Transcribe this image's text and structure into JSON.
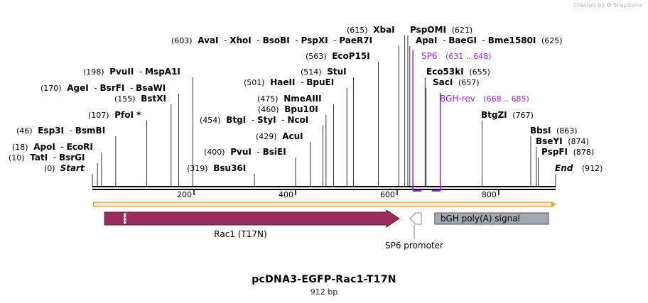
{
  "credit": {
    "prefix": "Created by",
    "brand": "SnapGene"
  },
  "plasmid": {
    "name": "pcDNA3-EGFP-Rac1-T17N",
    "length_label": "912 bp",
    "length": 912
  },
  "ends": {
    "start": {
      "pos_label": "(0)",
      "name": "Start"
    },
    "end": {
      "name": "End",
      "pos_label": "(912)"
    }
  },
  "ruler_ticks": [
    "200",
    "400",
    "600",
    "800"
  ],
  "sites": [
    {
      "id": "tati",
      "pos": 10,
      "pos_label": "(10)",
      "parts": [
        "TatI",
        "BsrGI"
      ]
    },
    {
      "id": "apoi",
      "pos": 18,
      "pos_label": "(18)",
      "parts": [
        "ApoI",
        "EcoRI"
      ]
    },
    {
      "id": "esp3i",
      "pos": 46,
      "pos_label": "(46)",
      "parts": [
        "Esp3I",
        "BsmBI"
      ]
    },
    {
      "id": "pfoi",
      "pos": 107,
      "pos_label": "(107)",
      "parts": [
        "PfoI *"
      ]
    },
    {
      "id": "bstxi",
      "pos": 155,
      "pos_label": "(155)",
      "parts": [
        "BstXI"
      ]
    },
    {
      "id": "agei",
      "pos": 170,
      "pos_label": "(170)",
      "parts": [
        "AgeI",
        "BsrFI",
        "BsaWI"
      ]
    },
    {
      "id": "pvuii",
      "pos": 198,
      "pos_label": "(198)",
      "parts": [
        "PvuII",
        "MspA1I"
      ]
    },
    {
      "id": "bsu36i",
      "pos": 319,
      "pos_label": "(319)",
      "parts": [
        "Bsu36I"
      ]
    },
    {
      "id": "pvui",
      "pos": 400,
      "pos_label": "(400)",
      "parts": [
        "PvuI",
        "BsiEI"
      ]
    },
    {
      "id": "acui",
      "pos": 429,
      "pos_label": "(429)",
      "parts": [
        "AcuI"
      ]
    },
    {
      "id": "btgi",
      "pos": 454,
      "pos_label": "(454)",
      "parts": [
        "BtgI",
        "StyI",
        "NcoI"
      ]
    },
    {
      "id": "bpu10i",
      "pos": 460,
      "pos_label": "(460)",
      "parts": [
        "Bpu10I"
      ]
    },
    {
      "id": "nmeaiii",
      "pos": 475,
      "pos_label": "(475)",
      "parts": [
        "NmeAIII"
      ]
    },
    {
      "id": "haeii",
      "pos": 501,
      "pos_label": "(501)",
      "parts": [
        "HaeII",
        "BpuEI"
      ]
    },
    {
      "id": "stui",
      "pos": 514,
      "pos_label": "(514)",
      "parts": [
        "StuI"
      ]
    },
    {
      "id": "ecop15i",
      "pos": 563,
      "pos_label": "(563)",
      "parts": [
        "EcoP15I"
      ]
    },
    {
      "id": "avai",
      "pos": 603,
      "pos_label": "(603)",
      "parts": [
        "AvaI",
        "XhoI",
        "BsoBI",
        "PspXI",
        "PaeR7I"
      ]
    },
    {
      "id": "xbai",
      "pos": 615,
      "pos_label": "(615)",
      "parts": [
        "XbaI"
      ]
    },
    {
      "id": "pspomi",
      "pos": 621,
      "pos_label": "(621)",
      "parts": [
        "PspOMI"
      ],
      "label_after": true
    },
    {
      "id": "apai",
      "pos": 625,
      "pos_label": "(625)",
      "parts": [
        "ApaI",
        "BaeGI",
        "Bme1580I"
      ],
      "label_after": true
    },
    {
      "id": "eco53ki",
      "pos": 655,
      "pos_label": "(655)",
      "parts": [
        "Eco53kI"
      ],
      "label_after": true
    },
    {
      "id": "saci",
      "pos": 657,
      "pos_label": "(657)",
      "parts": [
        "SacI"
      ],
      "label_after": true
    },
    {
      "id": "btgzi",
      "pos": 767,
      "pos_label": "(767)",
      "parts": [
        "BtgZI"
      ],
      "label_after": true
    },
    {
      "id": "bbsi",
      "pos": 863,
      "pos_label": "(863)",
      "parts": [
        "BbsI"
      ],
      "label_after": true
    },
    {
      "id": "bseyi",
      "pos": 874,
      "pos_label": "(874)",
      "parts": [
        "BseYI"
      ],
      "label_after": true
    },
    {
      "id": "pspfi",
      "pos": 878,
      "pos_label": "(878)",
      "parts": [
        "PspFI"
      ],
      "label_after": true
    }
  ],
  "primers": [
    {
      "id": "sp6",
      "name": "SP6",
      "range_label": "(631 .. 648)",
      "start": 631,
      "end": 648,
      "color": "#a020f0"
    },
    {
      "id": "bghrev",
      "name": "BGH-rev",
      "range_label": "(668 .. 685)",
      "start": 668,
      "end": 685,
      "color": "#a020f0"
    }
  ],
  "features": [
    {
      "id": "orf",
      "name": "",
      "start": 2,
      "end": 912,
      "strand": "forward",
      "color": "#f4a22c"
    },
    {
      "id": "rac1",
      "name": "Rac1 (T17N)",
      "start": 24,
      "end": 604,
      "strand": "forward",
      "color": "#9b2d5e"
    },
    {
      "id": "sp6p",
      "name": "SP6 promoter",
      "start": 631,
      "end": 650,
      "strand": "reverse",
      "color": "#ffffff"
    },
    {
      "id": "bgh",
      "name": "bGH poly(A) signal",
      "start": 674,
      "end": 898,
      "strand": "none",
      "color": "#a2a9b0"
    }
  ],
  "colors": {
    "backbone": "#000000",
    "site_line": "#000000",
    "primer": "#a020f0",
    "orf": "#f4a22c",
    "rac1": "#9b2d5e",
    "bgh": "#a2a9b0"
  }
}
